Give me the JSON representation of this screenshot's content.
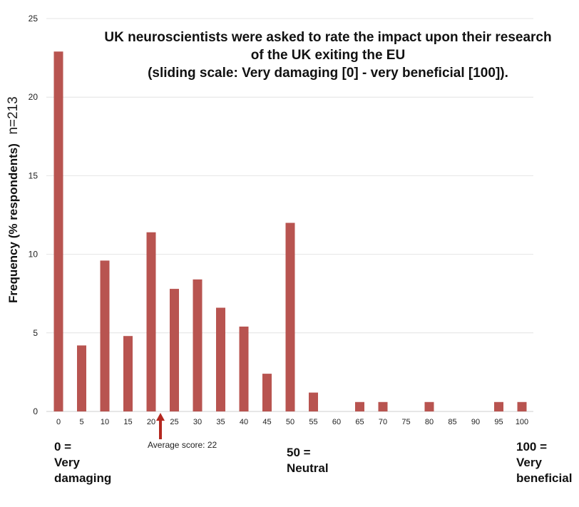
{
  "chart_data": {
    "type": "bar",
    "title_lines": [
      "UK neuroscientists were asked to rate the impact upon their research",
      "of the UK exiting the EU",
      "(sliding scale: Very damaging  [0] - very beneficial [100])."
    ],
    "ylabel": "Frequency (% respondents)",
    "ylabel_n": "n=213",
    "categories": [
      "0",
      "5",
      "10",
      "15",
      "20",
      "25",
      "30",
      "35",
      "40",
      "45",
      "50",
      "55",
      "60",
      "65",
      "70",
      "75",
      "80",
      "85",
      "90",
      "95",
      "100"
    ],
    "values": [
      22.9,
      4.2,
      9.6,
      4.8,
      11.4,
      7.8,
      8.4,
      6.6,
      5.4,
      2.4,
      12.0,
      1.2,
      0,
      0.6,
      0.6,
      0,
      0.6,
      0,
      0,
      0.6,
      0.6
    ],
    "ylim": [
      0,
      25
    ],
    "yticks": [
      "0",
      "5",
      "10",
      "15",
      "20",
      "25"
    ],
    "grid": true,
    "bar_color": "#b85450",
    "arrow_color": "#b42820",
    "average": {
      "label": "Average score: 22",
      "value": 22
    },
    "annotations": [
      {
        "lines": [
          "0 =",
          "Very",
          "damaging"
        ]
      },
      {
        "lines": [
          "50 =",
          "Neutral"
        ]
      },
      {
        "lines": [
          "100 =",
          "Very",
          "beneficial"
        ]
      }
    ]
  }
}
